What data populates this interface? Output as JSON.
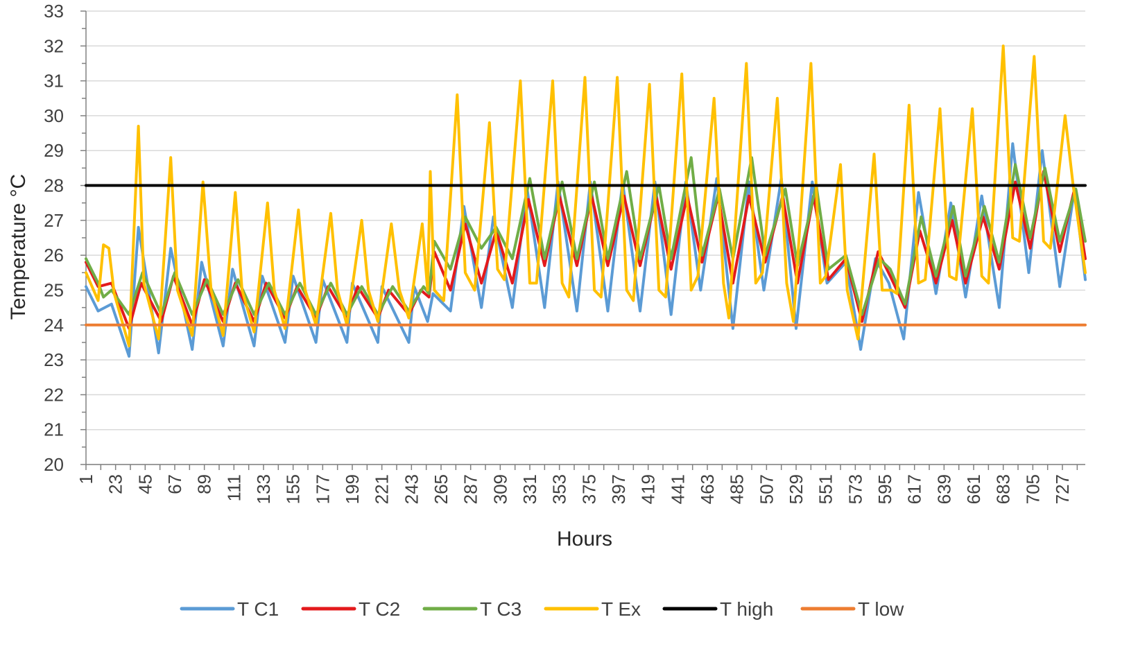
{
  "chart_data": {
    "type": "line",
    "title": "",
    "xlabel": "Hours",
    "ylabel": "Temperature °C",
    "ylim": [
      20,
      33
    ],
    "xlim": [
      1,
      744
    ],
    "x_ticks": [
      "1",
      "23",
      "45",
      "67",
      "89",
      "111",
      "133",
      "155",
      "177",
      "199",
      "221",
      "243",
      "265",
      "287",
      "309",
      "331",
      "353",
      "375",
      "397",
      "419",
      "441",
      "463",
      "485",
      "507",
      "529",
      "551",
      "573",
      "595",
      "617",
      "639",
      "661",
      "683",
      "705",
      "727"
    ],
    "y_ticks": [
      "20",
      "21",
      "22",
      "23",
      "24",
      "25",
      "26",
      "27",
      "28",
      "29",
      "30",
      "31",
      "32",
      "33"
    ],
    "grid": "horizontal",
    "legend_position": "bottom",
    "series": [
      {
        "name": "T C1",
        "color": "#5B9BD5",
        "points": [
          [
            1,
            25.1
          ],
          [
            10,
            24.4
          ],
          [
            20,
            24.6
          ],
          [
            33,
            23.1
          ],
          [
            40,
            26.8
          ],
          [
            55,
            23.2
          ],
          [
            64,
            26.2
          ],
          [
            80,
            23.3
          ],
          [
            87,
            25.8
          ],
          [
            103,
            23.4
          ],
          [
            110,
            25.6
          ],
          [
            126,
            23.4
          ],
          [
            132,
            25.4
          ],
          [
            149,
            23.5
          ],
          [
            155,
            25.4
          ],
          [
            172,
            23.5
          ],
          [
            177,
            25.3
          ],
          [
            195,
            23.5
          ],
          [
            199,
            25.2
          ],
          [
            218,
            23.5
          ],
          [
            221,
            25.1
          ],
          [
            241,
            23.5
          ],
          [
            245,
            25.1
          ],
          [
            255,
            24.1
          ],
          [
            259,
            24.9
          ],
          [
            272,
            24.4
          ],
          [
            282,
            27.4
          ],
          [
            295,
            24.5
          ],
          [
            304,
            27.1
          ],
          [
            318,
            24.5
          ],
          [
            329,
            27.9
          ],
          [
            342,
            24.5
          ],
          [
            352,
            28.1
          ],
          [
            366,
            24.4
          ],
          [
            376,
            28.1
          ],
          [
            389,
            24.4
          ],
          [
            400,
            28.1
          ],
          [
            413,
            24.4
          ],
          [
            424,
            28.1
          ],
          [
            436,
            24.3
          ],
          [
            447,
            28.1
          ],
          [
            458,
            25.0
          ],
          [
            470,
            28.2
          ],
          [
            482,
            23.9
          ],
          [
            494,
            28.1
          ],
          [
            505,
            25.0
          ],
          [
            518,
            28.2
          ],
          [
            529,
            23.9
          ],
          [
            541,
            28.1
          ],
          [
            552,
            25.2
          ],
          [
            566,
            25.8
          ],
          [
            577,
            23.3
          ],
          [
            588,
            25.9
          ],
          [
            598,
            25.2
          ],
          [
            609,
            23.6
          ],
          [
            620,
            27.8
          ],
          [
            633,
            24.9
          ],
          [
            644,
            27.5
          ],
          [
            655,
            24.8
          ],
          [
            667,
            27.7
          ],
          [
            680,
            24.5
          ],
          [
            690,
            29.2
          ],
          [
            702,
            25.5
          ],
          [
            712,
            29.0
          ],
          [
            725,
            25.1
          ],
          [
            736,
            27.9
          ],
          [
            744,
            25.3
          ]
        ]
      },
      {
        "name": "T C2",
        "color": "#E31A1C",
        "points": [
          [
            1,
            25.8
          ],
          [
            10,
            25.1
          ],
          [
            20,
            25.2
          ],
          [
            33,
            23.9
          ],
          [
            42,
            25.2
          ],
          [
            57,
            24.1
          ],
          [
            66,
            25.4
          ],
          [
            80,
            24.0
          ],
          [
            89,
            25.3
          ],
          [
            103,
            24.1
          ],
          [
            112,
            25.2
          ],
          [
            126,
            24.1
          ],
          [
            135,
            25.2
          ],
          [
            149,
            24.2
          ],
          [
            158,
            25.1
          ],
          [
            172,
            24.2
          ],
          [
            181,
            25.1
          ],
          [
            195,
            24.2
          ],
          [
            203,
            25.1
          ],
          [
            218,
            24.2
          ],
          [
            226,
            25.0
          ],
          [
            241,
            24.3
          ],
          [
            250,
            25.0
          ],
          [
            256,
            24.8
          ],
          [
            260,
            26.1
          ],
          [
            272,
            25.0
          ],
          [
            283,
            26.9
          ],
          [
            295,
            25.2
          ],
          [
            306,
            26.7
          ],
          [
            318,
            25.2
          ],
          [
            330,
            27.6
          ],
          [
            342,
            25.7
          ],
          [
            353,
            27.7
          ],
          [
            366,
            25.7
          ],
          [
            377,
            27.7
          ],
          [
            389,
            25.7
          ],
          [
            401,
            27.7
          ],
          [
            413,
            25.7
          ],
          [
            425,
            27.7
          ],
          [
            436,
            25.6
          ],
          [
            448,
            27.7
          ],
          [
            459,
            25.8
          ],
          [
            471,
            27.7
          ],
          [
            482,
            25.2
          ],
          [
            494,
            27.7
          ],
          [
            506,
            25.8
          ],
          [
            519,
            27.7
          ],
          [
            530,
            25.2
          ],
          [
            542,
            27.7
          ],
          [
            553,
            25.3
          ],
          [
            566,
            25.9
          ],
          [
            578,
            24.1
          ],
          [
            590,
            26.1
          ],
          [
            599,
            25.4
          ],
          [
            610,
            24.5
          ],
          [
            621,
            26.7
          ],
          [
            633,
            25.2
          ],
          [
            645,
            27.0
          ],
          [
            655,
            25.2
          ],
          [
            668,
            27.1
          ],
          [
            680,
            25.6
          ],
          [
            692,
            28.1
          ],
          [
            703,
            26.2
          ],
          [
            713,
            28.4
          ],
          [
            725,
            26.1
          ],
          [
            736,
            27.9
          ],
          [
            744,
            25.9
          ]
        ]
      },
      {
        "name": "T C3",
        "color": "#70AD47",
        "points": [
          [
            1,
            25.9
          ],
          [
            10,
            25.2
          ],
          [
            14,
            24.8
          ],
          [
            20,
            25.0
          ],
          [
            33,
            24.3
          ],
          [
            43,
            25.5
          ],
          [
            57,
            24.3
          ],
          [
            67,
            25.5
          ],
          [
            80,
            24.3
          ],
          [
            91,
            25.3
          ],
          [
            103,
            24.3
          ],
          [
            114,
            25.3
          ],
          [
            126,
            24.3
          ],
          [
            137,
            25.2
          ],
          [
            149,
            24.3
          ],
          [
            160,
            25.2
          ],
          [
            172,
            24.3
          ],
          [
            183,
            25.2
          ],
          [
            195,
            24.3
          ],
          [
            206,
            25.1
          ],
          [
            218,
            24.3
          ],
          [
            229,
            25.1
          ],
          [
            241,
            24.4
          ],
          [
            252,
            25.1
          ],
          [
            256,
            24.9
          ],
          [
            260,
            26.4
          ],
          [
            272,
            25.6
          ],
          [
            283,
            27.1
          ],
          [
            295,
            26.2
          ],
          [
            306,
            26.8
          ],
          [
            318,
            25.9
          ],
          [
            331,
            28.2
          ],
          [
            342,
            25.9
          ],
          [
            355,
            28.1
          ],
          [
            366,
            25.9
          ],
          [
            379,
            28.1
          ],
          [
            389,
            25.9
          ],
          [
            403,
            28.4
          ],
          [
            413,
            25.9
          ],
          [
            427,
            28.0
          ],
          [
            436,
            25.9
          ],
          [
            451,
            28.8
          ],
          [
            459,
            26.0
          ],
          [
            472,
            27.9
          ],
          [
            482,
            25.9
          ],
          [
            496,
            28.8
          ],
          [
            506,
            26.0
          ],
          [
            521,
            27.9
          ],
          [
            530,
            25.7
          ],
          [
            544,
            28.0
          ],
          [
            553,
            25.6
          ],
          [
            566,
            26.0
          ],
          [
            578,
            24.3
          ],
          [
            591,
            25.9
          ],
          [
            599,
            25.6
          ],
          [
            610,
            24.6
          ],
          [
            622,
            27.1
          ],
          [
            633,
            25.4
          ],
          [
            646,
            27.4
          ],
          [
            655,
            25.4
          ],
          [
            669,
            27.4
          ],
          [
            680,
            25.8
          ],
          [
            692,
            28.6
          ],
          [
            703,
            26.5
          ],
          [
            714,
            28.5
          ],
          [
            725,
            26.4
          ],
          [
            737,
            27.9
          ],
          [
            744,
            26.4
          ]
        ]
      },
      {
        "name": "T Ex",
        "color": "#FFC000",
        "points": [
          [
            1,
            25.5
          ],
          [
            10,
            24.7
          ],
          [
            14,
            26.3
          ],
          [
            18,
            26.2
          ],
          [
            22,
            24.9
          ],
          [
            33,
            23.4
          ],
          [
            40,
            29.7
          ],
          [
            44,
            25.2
          ],
          [
            55,
            23.6
          ],
          [
            64,
            28.8
          ],
          [
            69,
            25.0
          ],
          [
            80,
            23.7
          ],
          [
            88,
            28.1
          ],
          [
            94,
            25.0
          ],
          [
            103,
            23.7
          ],
          [
            112,
            27.8
          ],
          [
            117,
            25.0
          ],
          [
            126,
            23.8
          ],
          [
            136,
            27.5
          ],
          [
            141,
            25.0
          ],
          [
            149,
            23.9
          ],
          [
            159,
            27.3
          ],
          [
            164,
            25.0
          ],
          [
            172,
            24.0
          ],
          [
            183,
            27.2
          ],
          [
            188,
            25.0
          ],
          [
            195,
            24.0
          ],
          [
            206,
            27.0
          ],
          [
            211,
            25.0
          ],
          [
            218,
            24.1
          ],
          [
            228,
            26.9
          ],
          [
            234,
            25.0
          ],
          [
            241,
            24.2
          ],
          [
            251,
            26.9
          ],
          [
            255,
            25.0
          ],
          [
            257,
            28.4
          ],
          [
            260,
            25.0
          ],
          [
            267,
            24.7
          ],
          [
            277,
            30.6
          ],
          [
            283,
            25.5
          ],
          [
            290,
            25.0
          ],
          [
            301,
            29.8
          ],
          [
            307,
            25.6
          ],
          [
            312,
            25.3
          ],
          [
            324,
            31.0
          ],
          [
            331,
            25.2
          ],
          [
            336,
            25.2
          ],
          [
            348,
            31.0
          ],
          [
            355,
            25.2
          ],
          [
            360,
            24.8
          ],
          [
            372,
            31.1
          ],
          [
            379,
            25.0
          ],
          [
            384,
            24.8
          ],
          [
            396,
            31.1
          ],
          [
            403,
            25.0
          ],
          [
            408,
            24.7
          ],
          [
            420,
            30.9
          ],
          [
            427,
            25.0
          ],
          [
            432,
            24.8
          ],
          [
            444,
            31.2
          ],
          [
            451,
            25.0
          ],
          [
            456,
            25.4
          ],
          [
            468,
            30.5
          ],
          [
            475,
            25.2
          ],
          [
            479,
            24.2
          ],
          [
            492,
            31.5
          ],
          [
            499,
            25.2
          ],
          [
            504,
            25.5
          ],
          [
            515,
            30.5
          ],
          [
            522,
            25.2
          ],
          [
            527,
            24.1
          ],
          [
            540,
            31.5
          ],
          [
            547,
            25.2
          ],
          [
            551,
            25.4
          ],
          [
            562,
            28.6
          ],
          [
            567,
            25.0
          ],
          [
            575,
            23.6
          ],
          [
            587,
            28.9
          ],
          [
            593,
            25.0
          ],
          [
            600,
            25.0
          ],
          [
            604,
            24.9
          ],
          [
            613,
            30.3
          ],
          [
            620,
            25.2
          ],
          [
            625,
            25.3
          ],
          [
            636,
            30.2
          ],
          [
            643,
            25.4
          ],
          [
            648,
            25.3
          ],
          [
            660,
            30.2
          ],
          [
            667,
            25.4
          ],
          [
            672,
            25.2
          ],
          [
            683,
            32.0
          ],
          [
            690,
            26.5
          ],
          [
            695,
            26.4
          ],
          [
            706,
            31.7
          ],
          [
            713,
            26.4
          ],
          [
            718,
            26.2
          ],
          [
            729,
            30.0
          ],
          [
            735,
            28.0
          ],
          [
            744,
            25.5
          ]
        ]
      },
      {
        "name": "T high",
        "color": "#000000",
        "points": [
          [
            1,
            28
          ],
          [
            744,
            28
          ]
        ]
      },
      {
        "name": "T low",
        "color": "#ED7D31",
        "points": [
          [
            1,
            24
          ],
          [
            744,
            24
          ]
        ]
      }
    ]
  }
}
